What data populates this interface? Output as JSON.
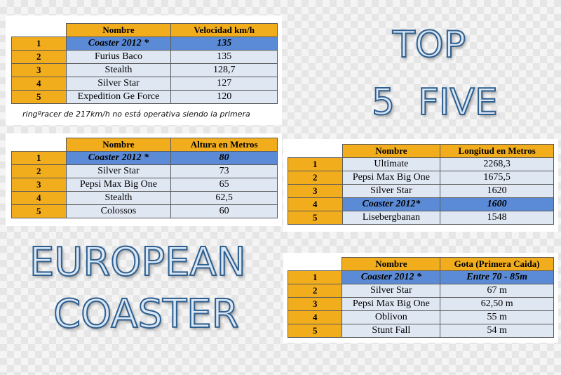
{
  "headings": {
    "top": "TOP",
    "five": "5  FIVE",
    "european": "EUROPEAN",
    "coaster": "COASTER"
  },
  "table_speed": {
    "col_name": "Nombre",
    "col_value": "Velocidad km/h",
    "rows": [
      {
        "rank": "1",
        "name": "Coaster 2012 *",
        "value": "135"
      },
      {
        "rank": "2",
        "name": "Furius Baco",
        "value": "135"
      },
      {
        "rank": "3",
        "name": "Stealth",
        "value": "128,7"
      },
      {
        "rank": "4",
        "name": "Silver Star",
        "value": "127"
      },
      {
        "rank": "5",
        "name": "Expedition Ge Force",
        "value": "120"
      }
    ],
    "note": "ringºracer de 217km/h no está operativa siendo la primera"
  },
  "table_height": {
    "col_name": "Nombre",
    "col_value": "Altura en Metros",
    "rows": [
      {
        "rank": "1",
        "name": "Coaster 2012 *",
        "value": "80"
      },
      {
        "rank": "2",
        "name": "Silver Star",
        "value": "73"
      },
      {
        "rank": "3",
        "name": "Pepsi Max Big One",
        "value": "65"
      },
      {
        "rank": "4",
        "name": "Stealth",
        "value": "62,5"
      },
      {
        "rank": "5",
        "name": "Colossos",
        "value": "60"
      }
    ]
  },
  "table_length": {
    "col_name": "Nombre",
    "col_value": "Longitud en Metros",
    "rows": [
      {
        "rank": "1",
        "name": "Ultimate",
        "value": "2268,3"
      },
      {
        "rank": "2",
        "name": "Pepsi Max Big One",
        "value": "1675,5"
      },
      {
        "rank": "3",
        "name": "Silver Star",
        "value": "1620"
      },
      {
        "rank": "4",
        "name": "Coaster 2012*",
        "value": "1600"
      },
      {
        "rank": "5",
        "name": "Lisebergbanan",
        "value": "1548"
      }
    ]
  },
  "table_drop": {
    "col_name": "Nombre",
    "col_value": "Gota (Primera Caida)",
    "rows": [
      {
        "rank": "1",
        "name": "Coaster 2012 *",
        "value": "Entre 70 - 85m"
      },
      {
        "rank": "2",
        "name": "Silver Star",
        "value": "67 m"
      },
      {
        "rank": "3",
        "name": "Pepsi Max Big One",
        "value": "62,50 m"
      },
      {
        "rank": "4",
        "name": "Oblivon",
        "value": "55 m"
      },
      {
        "rank": "5",
        "name": "Stunt Fall",
        "value": "54 m"
      }
    ]
  },
  "colors": {
    "header_orange": "#f2ad1d",
    "highlight_blue": "#5b8bd6",
    "cell_light": "#dfe7f3",
    "heading_outline": "#2e5f8f"
  }
}
